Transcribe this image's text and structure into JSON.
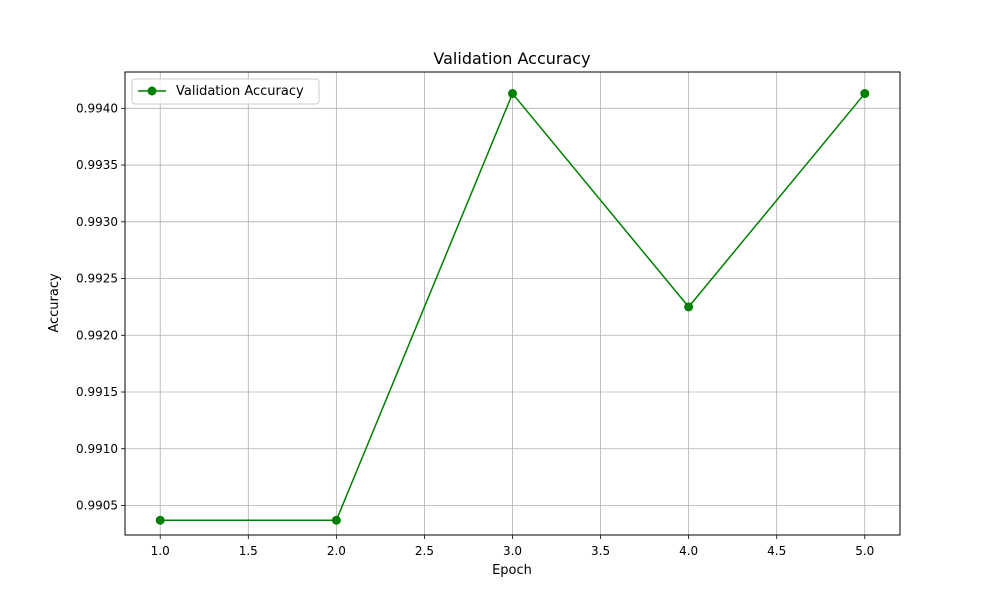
{
  "chart_data": {
    "type": "line",
    "title": "Validation Accuracy",
    "xlabel": "Epoch",
    "ylabel": "Accuracy",
    "x": [
      1,
      2,
      3,
      4,
      5
    ],
    "series": [
      {
        "name": "Validation Accuracy",
        "values": [
          0.99037,
          0.99037,
          0.99413,
          0.99225,
          0.99413
        ],
        "color": "#008000",
        "marker": "circle"
      }
    ],
    "xlim": [
      0.8,
      5.2
    ],
    "ylim": [
      0.99024,
      0.99432
    ],
    "xticks": [
      1.0,
      1.5,
      2.0,
      2.5,
      3.0,
      3.5,
      4.0,
      4.5,
      5.0
    ],
    "xtick_labels": [
      "1.0",
      "1.5",
      "2.0",
      "2.5",
      "3.0",
      "3.5",
      "4.0",
      "4.5",
      "5.0"
    ],
    "yticks": [
      0.9905,
      0.991,
      0.9915,
      0.992,
      0.9925,
      0.993,
      0.9935,
      0.994
    ],
    "ytick_labels": [
      "0.9905",
      "0.9910",
      "0.9915",
      "0.9920",
      "0.9925",
      "0.9930",
      "0.9935",
      "0.9940"
    ],
    "grid": true,
    "legend_position": "top-left",
    "grid_color": "#b0b0b0"
  }
}
